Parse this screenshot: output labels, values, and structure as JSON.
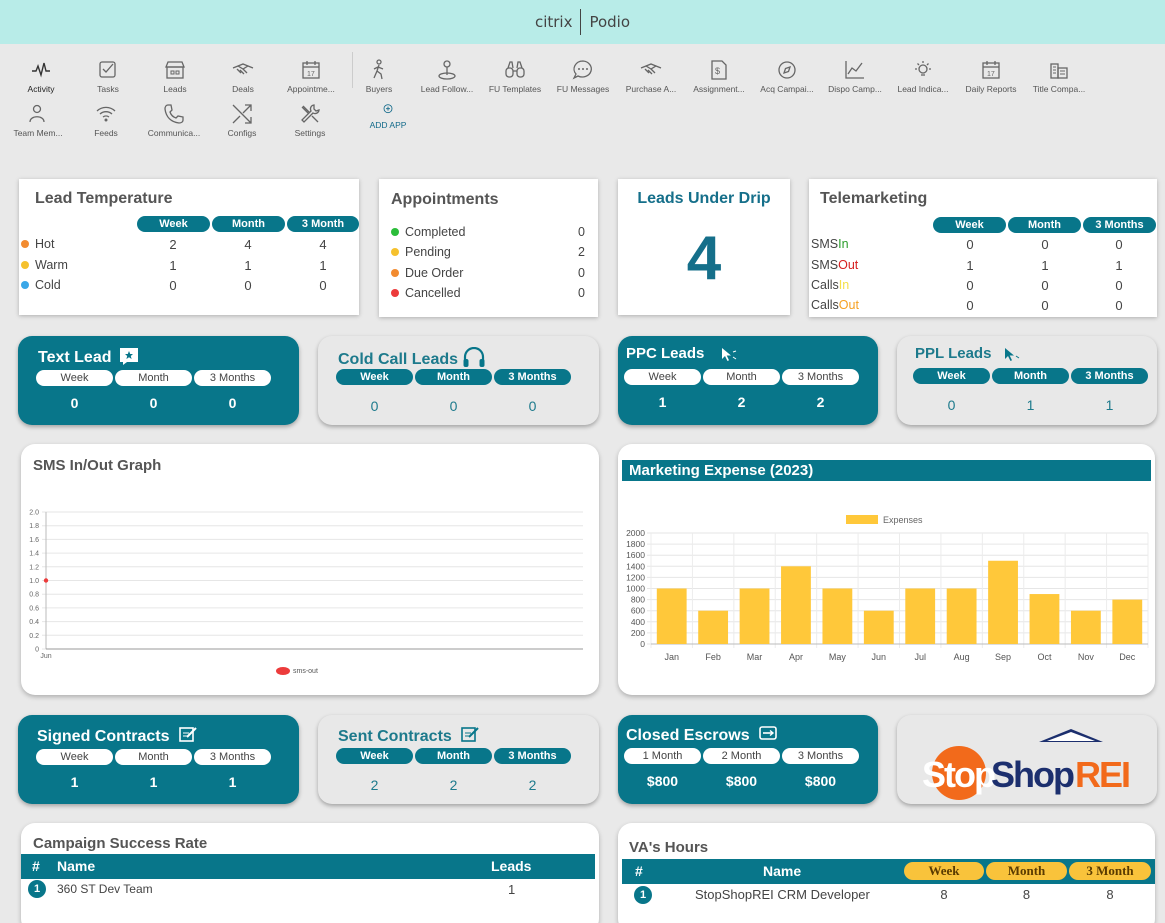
{
  "topbar": {
    "brand": "citrix",
    "product": "Podio"
  },
  "apps": [
    {
      "label": "Activity",
      "icon": "activity-icon"
    },
    {
      "label": "Tasks",
      "icon": "tasks-icon"
    },
    {
      "label": "Leads",
      "icon": "leads-icon"
    },
    {
      "label": "Deals",
      "icon": "handshake-icon"
    },
    {
      "label": "Appointme...",
      "icon": "calendar-icon"
    },
    {
      "label": "Buyers",
      "icon": "person-walking-icon"
    },
    {
      "label": "Lead Follow...",
      "icon": "location-pin-icon"
    },
    {
      "label": "FU Templates",
      "icon": "binoculars-icon"
    },
    {
      "label": "FU Messages",
      "icon": "chat-bubble-icon"
    },
    {
      "label": "Purchase A...",
      "icon": "handshake-icon"
    },
    {
      "label": "Assignment...",
      "icon": "document-dollar-icon"
    },
    {
      "label": "Acq Campai...",
      "icon": "compass-icon"
    },
    {
      "label": "Dispo Camp...",
      "icon": "line-chart-icon"
    },
    {
      "label": "Lead Indica...",
      "icon": "bulb-icon"
    },
    {
      "label": "Daily Reports",
      "icon": "calendar-icon"
    },
    {
      "label": "Title Compa...",
      "icon": "buildings-icon"
    },
    {
      "label": "Team Mem...",
      "icon": "team-member-icon"
    },
    {
      "label": "Feeds",
      "icon": "wifi-icon"
    },
    {
      "label": "Communica...",
      "icon": "phone-icon"
    },
    {
      "label": "Configs",
      "icon": "arrows-icon"
    },
    {
      "label": "Settings",
      "icon": "tools-icon"
    },
    {
      "label": "ADD APP",
      "icon": "plus-circle-icon"
    }
  ],
  "lead_temperature": {
    "title": "Lead Temperature",
    "cols": [
      "Week",
      "Month",
      "3 Month"
    ],
    "rows": [
      {
        "label": "Hot",
        "color": "#f28b30",
        "values": [
          "2",
          "4",
          "4"
        ]
      },
      {
        "label": "Warm",
        "color": "#f5c12e",
        "values": [
          "1",
          "1",
          "1"
        ]
      },
      {
        "label": "Cold",
        "color": "#3aa7e8",
        "values": [
          "0",
          "0",
          "0"
        ]
      }
    ]
  },
  "appointments": {
    "title": "Appointments",
    "rows": [
      {
        "label": "Completed",
        "color": "#2bbd3a",
        "value": "0"
      },
      {
        "label": "Pending",
        "color": "#f5c12e",
        "value": "2"
      },
      {
        "label": "Due Order",
        "color": "#f28b30",
        "value": "0"
      },
      {
        "label": "Cancelled",
        "color": "#ec3b3b",
        "value": "0"
      }
    ]
  },
  "leads_under_drip": {
    "title": "Leads Under Drip",
    "value": "4"
  },
  "telemarketing": {
    "title": "Telemarketing",
    "cols": [
      "Week",
      "Month",
      "3 Months"
    ],
    "rows": [
      {
        "a": "SMS",
        "b": "In",
        "bcolor": "#2a9d2a",
        "values": [
          "0",
          "0",
          "0"
        ]
      },
      {
        "a": "SMS",
        "b": "Out",
        "bcolor": "#d62020",
        "values": [
          "1",
          "1",
          "1"
        ]
      },
      {
        "a": "Calls",
        "b": "In",
        "bcolor": "#f5e04a",
        "values": [
          "0",
          "0",
          "0"
        ]
      },
      {
        "a": "Calls",
        "b": "Out",
        "bcolor": "#f5a020",
        "values": [
          "0",
          "0",
          "0"
        ]
      }
    ]
  },
  "text_lead": {
    "title": "Text Lead",
    "cols": [
      "Week",
      "Month",
      "3 Months"
    ],
    "values": [
      "0",
      "0",
      "0"
    ]
  },
  "cold_call_leads": {
    "title": "Cold Call Leads",
    "cols": [
      "Week",
      "Month",
      "3 Months"
    ],
    "values": [
      "0",
      "0",
      "0"
    ]
  },
  "ppc_leads": {
    "title": "PPC Leads",
    "cols": [
      "Week",
      "Month",
      "3 Months"
    ],
    "values": [
      "1",
      "2",
      "2"
    ]
  },
  "ppl_leads": {
    "title": "PPL Leads",
    "cols": [
      "Week",
      "Month",
      "3 Months"
    ],
    "values": [
      "0",
      "1",
      "1"
    ]
  },
  "sms_graph": {
    "title": "SMS In/Out Graph"
  },
  "marketing_expense": {
    "title": "Marketing Expense (2023)"
  },
  "signed_contracts": {
    "title": "Signed Contracts",
    "cols": [
      "Week",
      "Month",
      "3 Months"
    ],
    "values": [
      "1",
      "1",
      "1"
    ]
  },
  "sent_contracts": {
    "title": "Sent Contracts",
    "cols": [
      "Week",
      "Month",
      "3 Months"
    ],
    "values": [
      "2",
      "2",
      "2"
    ]
  },
  "closed_escrows": {
    "title": "Closed Escrows",
    "cols": [
      "1 Month",
      "2 Month",
      "3 Months"
    ],
    "values": [
      "$800",
      "$800",
      "$800"
    ]
  },
  "logo": {
    "text_a": "Stop",
    "text_b": "Shop",
    "text_c": "REI"
  },
  "campaign_success": {
    "title": "Campaign Success Rate",
    "cols": [
      "#",
      "Name",
      "Leads"
    ],
    "rows": [
      {
        "num": "1",
        "name": "360 ST Dev Team",
        "leads": "1"
      }
    ]
  },
  "va_hours": {
    "title": "VA's Hours",
    "cols": [
      "#",
      "Name",
      "Week",
      "Month",
      "3 Month"
    ],
    "rows": [
      {
        "num": "1",
        "name": "StopShopREI CRM Developer",
        "week": "8",
        "month": "8",
        "three": "8"
      }
    ]
  },
  "chart_data": [
    {
      "type": "line",
      "title": "SMS In/Out Graph",
      "x": [
        "Jun"
      ],
      "series": [
        {
          "name": "sms-out",
          "color": "#ec3b3b",
          "values": [
            1.0
          ]
        }
      ],
      "yticks": [
        "0",
        "0.2",
        "0.4",
        "0.6",
        "0.8",
        "1.0",
        "1.2",
        "1.4",
        "1.6",
        "1.8",
        "2.0"
      ],
      "ylim": [
        0,
        2
      ],
      "legend": "bottom",
      "grid": true
    },
    {
      "type": "bar",
      "title": "Marketing Expense (2023)",
      "categories": [
        "Jan",
        "Feb",
        "Mar",
        "Apr",
        "May",
        "Jun",
        "Jul",
        "Aug",
        "Sep",
        "Oct",
        "Nov",
        "Dec"
      ],
      "series": [
        {
          "name": "Expenses",
          "color": "#ffc83a",
          "values": [
            1000,
            600,
            1000,
            1400,
            1000,
            600,
            1000,
            1000,
            1500,
            900,
            600,
            800
          ]
        }
      ],
      "yticks": [
        "0",
        "200",
        "400",
        "600",
        "800",
        "1000",
        "1200",
        "1400",
        "1600",
        "1800",
        "2000"
      ],
      "ylim": [
        0,
        2000
      ],
      "legend": "top",
      "grid": true
    }
  ]
}
